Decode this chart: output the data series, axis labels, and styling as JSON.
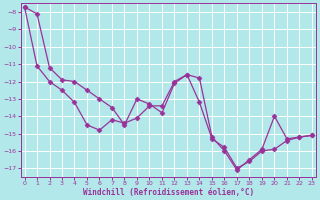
{
  "xlabel": "Windchill (Refroidissement éolien,°C)",
  "background_color": "#b2e8ea",
  "grid_color": "#ffffff",
  "line_color": "#993399",
  "xlim_min": -0.3,
  "xlim_max": 23.3,
  "ylim_top": -7.5,
  "ylim_bottom": -17.5,
  "yticks": [
    -8,
    -9,
    -10,
    -11,
    -12,
    -13,
    -14,
    -15,
    -16,
    -17
  ],
  "xticks": [
    0,
    1,
    2,
    3,
    4,
    5,
    6,
    7,
    8,
    9,
    10,
    11,
    12,
    13,
    14,
    15,
    16,
    17,
    18,
    19,
    20,
    21,
    22,
    23
  ],
  "line1_x": [
    0,
    1,
    2,
    3,
    4,
    5,
    6,
    7,
    8,
    9,
    10,
    11,
    12,
    13,
    14,
    15,
    16,
    17,
    18,
    19,
    20,
    21,
    22,
    23
  ],
  "line1_y": [
    -7.7,
    -11.1,
    -12.0,
    -12.5,
    -13.2,
    -14.5,
    -14.8,
    -14.2,
    -14.4,
    -14.1,
    -13.4,
    -13.4,
    -12.0,
    -11.6,
    -13.2,
    -15.3,
    -15.8,
    -17.0,
    -16.6,
    -16.0,
    -15.9,
    -15.4,
    -15.2,
    -15.1
  ],
  "line2_x": [
    0,
    1,
    2,
    3,
    4,
    5,
    6,
    7,
    8,
    9,
    10,
    11,
    12,
    13,
    14,
    15,
    16,
    17,
    18,
    19,
    20,
    21,
    22,
    23
  ],
  "line2_y": [
    -7.7,
    -8.1,
    -11.2,
    -11.9,
    -12.0,
    -12.5,
    -13.0,
    -13.5,
    -14.5,
    -13.0,
    -13.3,
    -13.8,
    -12.1,
    -11.6,
    -11.8,
    -15.2,
    -16.0,
    -17.1,
    -16.5,
    -15.9,
    -14.0,
    -15.3,
    -15.2,
    -15.1
  ]
}
